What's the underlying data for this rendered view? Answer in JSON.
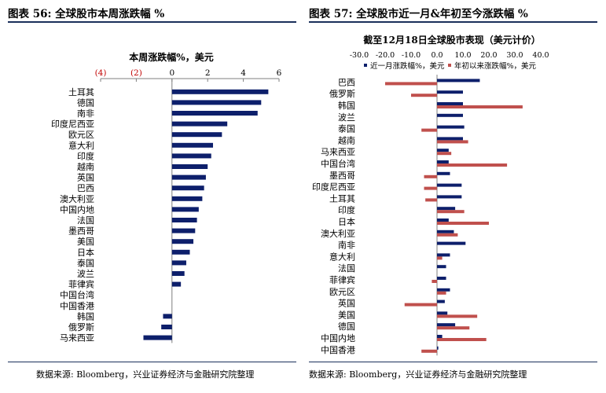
{
  "figures": {
    "left_title": "图表 56:  全球股市本周涨跌幅  %",
    "right_title": "图表 57:  全球股市近一月&年初至今涨跌幅  %",
    "left_source": "数据来源:  Bloomberg，兴业证券经济与金融研究院整理",
    "right_source": "数据来源:  Bloomberg，兴业证券经济与金融研究院整理"
  },
  "colors": {
    "navy": "#0d1f6b",
    "red": "#c0504d",
    "axis": "#7f7f7f",
    "rule": "#1a2f5a",
    "neg_tick": "#c00000"
  },
  "chart_data": [
    {
      "type": "bar",
      "orientation": "horizontal",
      "title": "本周涨跌幅%，美元",
      "xlim": [
        -4,
        6
      ],
      "ticks": [
        {
          "value": -4,
          "label": "(4)"
        },
        {
          "value": -2,
          "label": "(2)"
        },
        {
          "value": 0,
          "label": "0"
        },
        {
          "value": 2,
          "label": "2"
        },
        {
          "value": 4,
          "label": "4"
        },
        {
          "value": 6,
          "label": "6"
        }
      ],
      "categories": [
        "土耳其",
        "德国",
        "南非",
        "印度尼西亚",
        "欧元区",
        "意大利",
        "印度",
        "越南",
        "英国",
        "巴西",
        "澳大利亚",
        "中国内地",
        "法国",
        "墨西哥",
        "美国",
        "日本",
        "泰国",
        "波兰",
        "菲律宾",
        "中国台湾",
        "中国香港",
        "韩国",
        "俄罗斯",
        "马来西亚"
      ],
      "values": [
        5.4,
        5.0,
        4.8,
        3.1,
        2.8,
        2.3,
        2.2,
        2.0,
        1.9,
        1.8,
        1.7,
        1.5,
        1.4,
        1.3,
        1.2,
        1.0,
        0.8,
        0.7,
        0.5,
        0.0,
        0.0,
        -0.5,
        -0.6,
        -1.6
      ]
    },
    {
      "type": "bar",
      "orientation": "horizontal",
      "title": "截至12月18日全球股市表现（美元计价）",
      "xlim": [
        -30,
        40
      ],
      "ticks": [
        {
          "value": -30,
          "label": "-30.0"
        },
        {
          "value": -20,
          "label": "-20.0"
        },
        {
          "value": -10,
          "label": "-10.0"
        },
        {
          "value": 0,
          "label": "0.0"
        },
        {
          "value": 10,
          "label": "10.0"
        },
        {
          "value": 20,
          "label": "20.0"
        },
        {
          "value": 30,
          "label": "30.0"
        },
        {
          "value": 40,
          "label": "40.0"
        }
      ],
      "legend": "top",
      "categories": [
        "巴西",
        "俄罗斯",
        "韩国",
        "波兰",
        "泰国",
        "越南",
        "马来西亚",
        "中国台湾",
        "墨西哥",
        "印度尼西亚",
        "土耳其",
        "印度",
        "日本",
        "澳大利亚",
        "南非",
        "意大利",
        "法国",
        "菲律宾",
        "欧元区",
        "英国",
        "美国",
        "德国",
        "中国内地",
        "中国香港"
      ],
      "series": [
        {
          "name": "近一月涨跌幅%，美元",
          "values": [
            16.5,
            10.0,
            10.0,
            10.0,
            10.5,
            10.0,
            4.5,
            4.5,
            5.0,
            9.5,
            9.5,
            7.0,
            4.5,
            6.5,
            11.0,
            5.0,
            3.5,
            3.5,
            5.0,
            3.0,
            4.0,
            7.0,
            2.0,
            0.5
          ]
        },
        {
          "name": "年初以来涨跌幅%，美元",
          "values": [
            -20.0,
            -10.0,
            33.0,
            0.0,
            -6.0,
            12.0,
            5.5,
            27.0,
            -5.0,
            -5.0,
            -4.5,
            10.5,
            20.0,
            8.0,
            0.0,
            2.0,
            0.0,
            -2.0,
            3.5,
            -12.5,
            15.5,
            12.5,
            19.0,
            -6.0
          ]
        }
      ]
    }
  ]
}
